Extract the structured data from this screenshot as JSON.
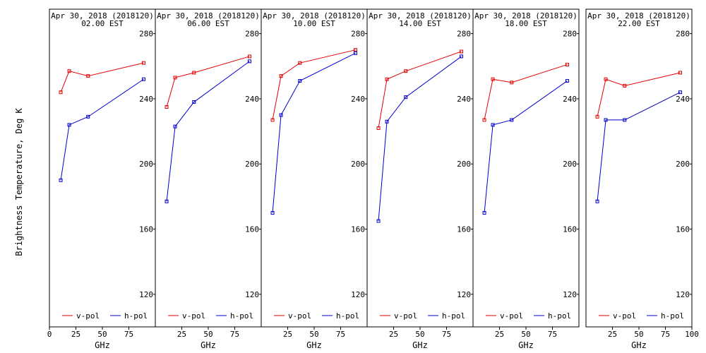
{
  "ylabel": "Brightness Temperature, Deg K",
  "colors": {
    "v_pol": "#e00000",
    "h_pol": "#0000cc",
    "frame": "#000000"
  },
  "chart_data": [
    {
      "type": "line",
      "title": "Apr 30, 2018 (2018120)",
      "subtitle": "02.00 EST",
      "xlabel": "GHz",
      "xlim": [
        0,
        100
      ],
      "ylim": [
        100,
        295
      ],
      "xticks": [
        "0",
        "25",
        "50",
        "75"
      ],
      "yticks": [
        "120",
        "160",
        "200",
        "240",
        "280"
      ],
      "x": [
        10.7,
        18.7,
        36.5,
        89.0
      ],
      "series": [
        {
          "name": "v-pol",
          "values": [
            244,
            257,
            254,
            262
          ]
        },
        {
          "name": "h-pol",
          "values": [
            190,
            224,
            229,
            252
          ]
        }
      ]
    },
    {
      "type": "line",
      "title": "Apr 30, 2018 (2018120)",
      "subtitle": "06.00 EST",
      "xlabel": "GHz",
      "xlim": [
        0,
        100
      ],
      "ylim": [
        100,
        295
      ],
      "xticks": [
        "25",
        "50",
        "75"
      ],
      "yticks": [
        "120",
        "160",
        "200",
        "240",
        "280"
      ],
      "x": [
        10.7,
        18.7,
        36.5,
        89.0
      ],
      "series": [
        {
          "name": "v-pol",
          "values": [
            235,
            253,
            256,
            266
          ]
        },
        {
          "name": "h-pol",
          "values": [
            177,
            223,
            238,
            263
          ]
        }
      ]
    },
    {
      "type": "line",
      "title": "Apr 30, 2018 (2018120)",
      "subtitle": "10.00 EST",
      "xlabel": "GHz",
      "xlim": [
        0,
        100
      ],
      "ylim": [
        100,
        295
      ],
      "xticks": [
        "25",
        "50",
        "75"
      ],
      "yticks": [
        "120",
        "160",
        "200",
        "240",
        "280"
      ],
      "x": [
        10.7,
        18.7,
        36.5,
        89.0
      ],
      "series": [
        {
          "name": "v-pol",
          "values": [
            227,
            254,
            262,
            270
          ]
        },
        {
          "name": "h-pol",
          "values": [
            170,
            230,
            251,
            268
          ]
        }
      ]
    },
    {
      "type": "line",
      "title": "Apr 30, 2018 (2018120)",
      "subtitle": "14.00 EST",
      "xlabel": "GHz",
      "xlim": [
        0,
        100
      ],
      "ylim": [
        100,
        295
      ],
      "xticks": [
        "25",
        "50",
        "75"
      ],
      "yticks": [
        "120",
        "160",
        "200",
        "240",
        "280"
      ],
      "x": [
        10.7,
        18.7,
        36.5,
        89.0
      ],
      "series": [
        {
          "name": "v-pol",
          "values": [
            222,
            252,
            257,
            269
          ]
        },
        {
          "name": "h-pol",
          "values": [
            165,
            226,
            241,
            266
          ]
        }
      ]
    },
    {
      "type": "line",
      "title": "Apr 30, 2018 (2018120)",
      "subtitle": "18.00 EST",
      "xlabel": "GHz",
      "xlim": [
        0,
        100
      ],
      "ylim": [
        100,
        295
      ],
      "xticks": [
        "25",
        "50",
        "75"
      ],
      "yticks": [
        "120",
        "160",
        "200",
        "240",
        "280"
      ],
      "x": [
        10.7,
        18.7,
        36.5,
        89.0
      ],
      "series": [
        {
          "name": "v-pol",
          "values": [
            227,
            252,
            250,
            261
          ]
        },
        {
          "name": "h-pol",
          "values": [
            170,
            224,
            227,
            251
          ]
        }
      ]
    },
    {
      "type": "line",
      "title": "Apr 30, 2018 (2018120)",
      "subtitle": "22.00 EST",
      "xlabel": "GHz",
      "xlim": [
        0,
        100
      ],
      "ylim": [
        100,
        295
      ],
      "xticks": [
        "25",
        "50",
        "75",
        "100"
      ],
      "yticks": [
        "120",
        "160",
        "200",
        "240",
        "280"
      ],
      "x": [
        10.7,
        18.7,
        36.5,
        89.0
      ],
      "series": [
        {
          "name": "v-pol",
          "values": [
            229,
            252,
            248,
            256
          ]
        },
        {
          "name": "h-pol",
          "values": [
            177,
            227,
            227,
            244
          ]
        }
      ]
    }
  ]
}
